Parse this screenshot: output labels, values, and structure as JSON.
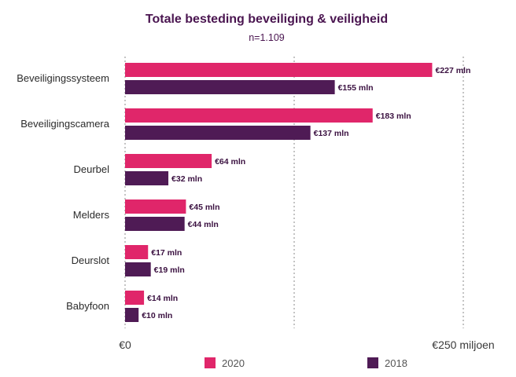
{
  "chart_data": {
    "type": "bar",
    "orientation": "horizontal",
    "title": "Totale besteding beveiliging & veiligheid",
    "subtitle": "n=1.109",
    "categories": [
      "Beveiligingssysteem",
      "Beveiligingscamera",
      "Deurbel",
      "Melders",
      "Deurslot",
      "Babyfoon"
    ],
    "series": [
      {
        "name": "2020",
        "color": "#e0266a",
        "values": [
          227,
          183,
          64,
          45,
          17,
          14
        ],
        "labels": [
          "€227 mln",
          "€183 mln",
          "€64 mln",
          "€45 mln",
          "€17 mln",
          "€14 mln"
        ]
      },
      {
        "name": "2018",
        "color": "#4f1b55",
        "values": [
          155,
          137,
          32,
          44,
          19,
          10
        ],
        "labels": [
          "€155 mln",
          "€137 mln",
          "€32 mln",
          "€44 mln",
          "€19 mln",
          "€10 mln"
        ]
      }
    ],
    "xlim": [
      0,
      250
    ],
    "x_axis_start_label": "€0",
    "x_axis_end_label": "€250 miljoen",
    "gridlines": [
      0,
      125,
      250
    ],
    "legend_position": "bottom"
  }
}
